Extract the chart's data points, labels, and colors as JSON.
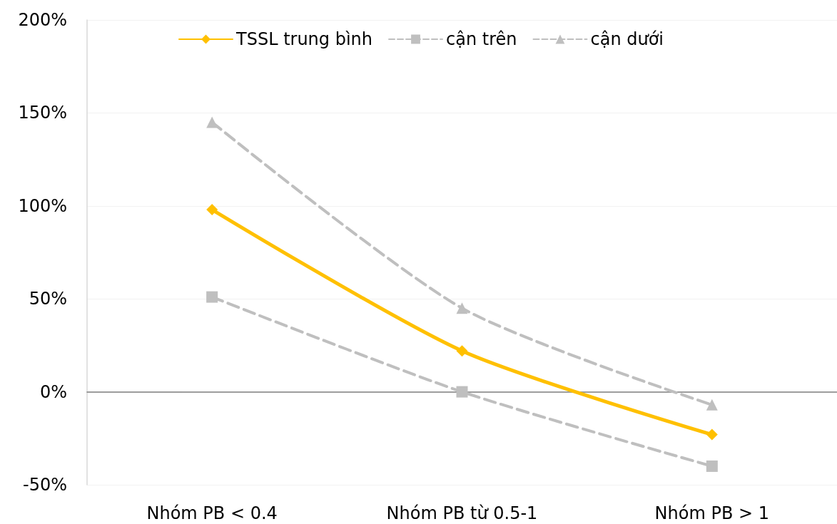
{
  "chart_data": {
    "type": "line",
    "categories": [
      "Nhóm PB < 0.4",
      "Nhóm PB từ 0.5-1",
      "Nhóm PB > 1"
    ],
    "series": [
      {
        "name": "TSSL trung bình",
        "color": "#ffc000",
        "values": [
          98,
          22,
          -23
        ],
        "marker": "diamond",
        "line_style": "solid"
      },
      {
        "name": "cận trên",
        "color": "#bfbfbf",
        "values": [
          51,
          0,
          -40
        ],
        "marker": "square",
        "line_style": "dashed"
      },
      {
        "name": "cận dưới",
        "color": "#bfbfbf",
        "values": [
          145,
          45,
          -7
        ],
        "marker": "triangle",
        "line_style": "dashed"
      }
    ],
    "ylim": [
      -50,
      200
    ],
    "yticks": [
      {
        "value": -50,
        "label": "-50%"
      },
      {
        "value": 0,
        "label": "0%"
      },
      {
        "value": 50,
        "label": "50%"
      },
      {
        "value": 100,
        "label": "100%"
      },
      {
        "value": 150,
        "label": "150%"
      },
      {
        "value": 200,
        "label": "200%"
      }
    ],
    "grid": "y",
    "legend": "top"
  }
}
